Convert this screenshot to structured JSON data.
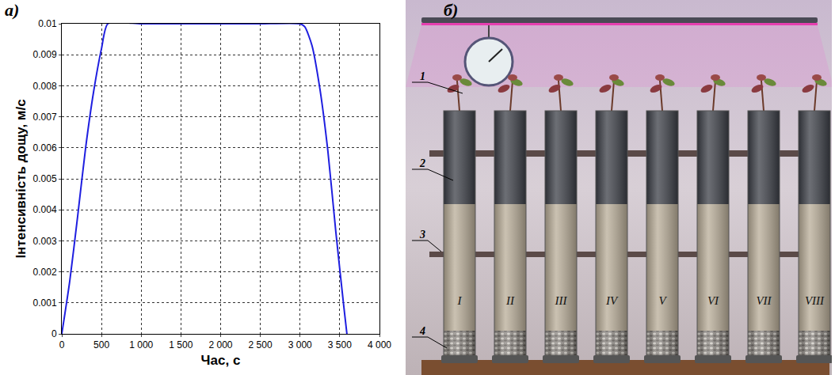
{
  "chart_data": {
    "type": "line",
    "panel": "а)",
    "x_label": "Час, с",
    "y_label": "Інтенсивність дощу, м/с",
    "x": [
      0,
      100,
      200,
      300,
      400,
      500,
      580,
      1000,
      1500,
      2000,
      2500,
      3000,
      3060,
      3150,
      3250,
      3350,
      3450,
      3550,
      3590
    ],
    "values": [
      0,
      0.0017,
      0.0038,
      0.006,
      0.0078,
      0.0092,
      0.01,
      0.01,
      0.01,
      0.01,
      0.01,
      0.01,
      0.0099,
      0.0093,
      0.0079,
      0.0059,
      0.0033,
      0.0009,
      0
    ],
    "color": "#1f1fe0",
    "line_style": "solid",
    "xlim": [
      0,
      4000
    ],
    "xticks": [
      0,
      500,
      {
        "value": 1000,
        "label": "1 000"
      },
      {
        "value": 1500,
        "label": "1 500"
      },
      {
        "value": 2000,
        "label": "2 000"
      },
      {
        "value": 2500,
        "label": "2 500"
      },
      {
        "value": 3000,
        "label": "3 000"
      },
      {
        "value": 3500,
        "label": "3 500"
      },
      {
        "value": 4000,
        "label": "4 000"
      }
    ],
    "ylim": [
      0,
      0.01
    ],
    "yticks": [
      0,
      0.001,
      0.002,
      0.003,
      0.004,
      0.005,
      0.006,
      0.007,
      0.008,
      0.009,
      0.01
    ],
    "grid": true
  },
  "photo": {
    "panel": "б)",
    "callouts": [
      "1",
      "2",
      "3",
      "4"
    ],
    "columns": [
      "I",
      "II",
      "III",
      "IV",
      "V",
      "VI",
      "VII",
      "VIII"
    ]
  }
}
